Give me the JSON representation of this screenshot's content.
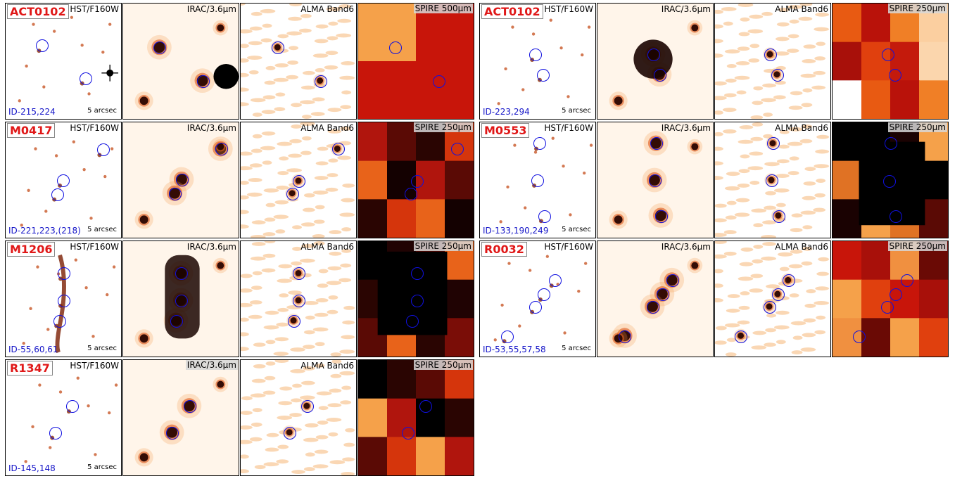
{
  "clusters": [
    {
      "name": "ACT0102",
      "ids": "ID-215,224",
      "scale": "5 arcsec",
      "bands": [
        "HST/F160W",
        "IRAC/3.6μm",
        "ALMA Band6",
        "SPIRE 500μm"
      ]
    },
    {
      "name": "ACT0102",
      "ids": "ID-223,294",
      "scale": "5 arcsec",
      "bands": [
        "HST/F160W",
        "IRAC/3.6μm",
        "ALMA Band6",
        "SPIRE 250μm"
      ]
    },
    {
      "name": "M0417",
      "ids": "ID-221,223,(218)",
      "scale": "5 arcsec",
      "bands": [
        "HST/F160W",
        "IRAC/3.6μm",
        "ALMA Band6",
        "SPIRE 250μm"
      ]
    },
    {
      "name": "M0553",
      "ids": "ID-133,190,249",
      "scale": "5 arcsec",
      "bands": [
        "HST/F160W",
        "IRAC/3.6μm",
        "ALMA Band6",
        "SPIRE 250μm"
      ]
    },
    {
      "name": "M1206",
      "ids": "ID-55,60,61",
      "scale": "5 arcsec",
      "bands": [
        "HST/F160W",
        "IRAC/3.6μm",
        "ALMA Band6",
        "SPIRE 250μm"
      ]
    },
    {
      "name": "R0032",
      "ids": "ID-53,55,57,58",
      "scale": "5 arcsec",
      "bands": [
        "HST/F160W",
        "IRAC/3.6μm",
        "ALMA Band6",
        "SPIRE 250μm"
      ]
    },
    {
      "name": "R1347",
      "ids": "ID-145,148",
      "scale": "5 arcsec",
      "bands": [
        "HST/F160W",
        "IRAC/3.6μm",
        "ALMA Band6",
        "SPIRE 250μm"
      ]
    }
  ],
  "colors": {
    "circle": "#1010e0",
    "cluster_name": "#e01818",
    "ids": "#1515c8"
  }
}
